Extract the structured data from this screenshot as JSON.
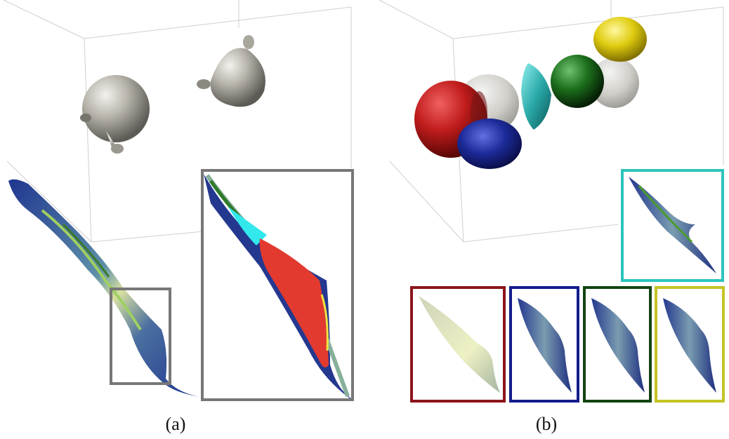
{
  "panels": [
    {
      "caption": "(a)",
      "objects": [
        "gray-blob",
        "gray-blob"
      ],
      "detail_colors": [
        "#24388f",
        "#66a070",
        "#e23a2f",
        "#32e8ec",
        "#f1e341"
      ]
    },
    {
      "caption": "(b)",
      "objects": [
        "red-blob",
        "gray-blob",
        "blue-blob",
        "teal-shard",
        "green-blob",
        "gray-blob",
        "yellow-blob"
      ],
      "frame_colors": [
        "#2cc4bc",
        "#8c141c",
        "#141c8c",
        "#144414",
        "#c4c424"
      ]
    }
  ],
  "colors": {
    "gray_object": "#a9a69c",
    "red_object": "#b81c1c",
    "blue_object": "#1a2a90",
    "teal_object": "#2aa8a8",
    "green_object": "#1a6a1a",
    "yellow_object": "#d8c810",
    "inset_frame_gray": "#777777"
  }
}
